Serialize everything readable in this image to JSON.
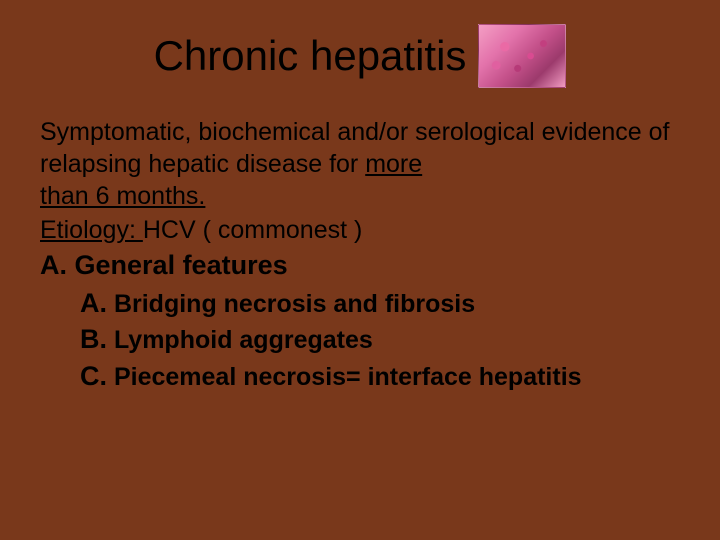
{
  "colors": {
    "background": "#79381b",
    "text": "#000000"
  },
  "histology_image": {
    "gradient_css": "radial-gradient(circle at 30% 35%, #ea6aa5 0%, #ea6aa5 6%, transparent 7%), radial-gradient(circle at 60% 50%, #d94b91 0%, #d94b91 5%, transparent 6%), radial-gradient(circle at 75% 30%, #c23f7f 0%, #c23f7f 4%, transparent 5%), radial-gradient(circle at 45% 70%, #b63a78 0%, #b63a78 5%, transparent 6%), radial-gradient(circle at 20% 65%, #e060a0 0%, #e060a0 5%, transparent 6%), linear-gradient(135deg, #f49ec4 0%, #e373ab 30%, #c24f88 55%, #9c3a6c 75%, #f19bc2 100%)"
  },
  "title": "Chronic  hepatitis",
  "definition": {
    "part1": "Symptomatic, biochemical and/or serological evidence of relapsing hepatic disease for ",
    "underlined1": "more",
    "part2": " ",
    "underlined2": "than 6 months."
  },
  "etiology": {
    "label": "Etiology: ",
    "value": "HCV ( commonest )"
  },
  "section": {
    "marker": "A.",
    "heading": "General features",
    "items": [
      {
        "marker": "A.",
        "text": "Bridging necrosis and fibrosis"
      },
      {
        "marker": "B.",
        "text": "Lymphoid aggregates"
      },
      {
        "marker": "C.",
        "text": "Piecemeal necrosis= interface hepatitis"
      }
    ]
  }
}
